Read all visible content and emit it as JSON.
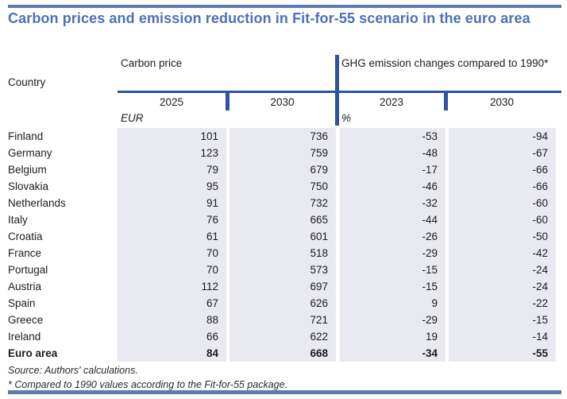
{
  "title": "Carbon prices and emission reduction in Fit-for-55 scenario in the euro area",
  "colors": {
    "title_blue": "#4a72b8",
    "rule_soft_blue": "#5d7bae",
    "rule_strong_blue": "#2f549e",
    "cell_background": "#e9e9f1",
    "text": "#1c1c1c"
  },
  "table": {
    "country_header": "Country",
    "groups": [
      {
        "label": "Carbon price",
        "unit": "EUR",
        "years": [
          "2025",
          "2030"
        ]
      },
      {
        "label": "GHG emission changes compared to 1990*",
        "unit": "%",
        "years": [
          "2023",
          "2030"
        ]
      }
    ],
    "rows": [
      {
        "country": "Finland",
        "values": [
          101,
          736,
          -53,
          -94
        ],
        "bold": false
      },
      {
        "country": "Germany",
        "values": [
          123,
          759,
          -48,
          -67
        ],
        "bold": false
      },
      {
        "country": "Belgium",
        "values": [
          79,
          679,
          -17,
          -66
        ],
        "bold": false
      },
      {
        "country": "Slovakia",
        "values": [
          95,
          750,
          -46,
          -66
        ],
        "bold": false
      },
      {
        "country": "Netherlands",
        "values": [
          91,
          732,
          -32,
          -60
        ],
        "bold": false
      },
      {
        "country": "Italy",
        "values": [
          76,
          665,
          -44,
          -60
        ],
        "bold": false
      },
      {
        "country": "Croatia",
        "values": [
          61,
          601,
          -26,
          -50
        ],
        "bold": false
      },
      {
        "country": "France",
        "values": [
          70,
          518,
          -29,
          -42
        ],
        "bold": false
      },
      {
        "country": "Portugal",
        "values": [
          70,
          573,
          -15,
          -24
        ],
        "bold": false
      },
      {
        "country": "Austria",
        "values": [
          112,
          697,
          -15,
          -24
        ],
        "bold": false
      },
      {
        "country": "Spain",
        "values": [
          67,
          626,
          9,
          -22
        ],
        "bold": false
      },
      {
        "country": "Greece",
        "values": [
          88,
          721,
          -29,
          -15
        ],
        "bold": false
      },
      {
        "country": "Ireland",
        "values": [
          66,
          622,
          19,
          -14
        ],
        "bold": false
      },
      {
        "country": "Euro area",
        "values": [
          84,
          668,
          -34,
          -55
        ],
        "bold": true
      }
    ]
  },
  "footer": {
    "source": "Source: Authors' calculations.",
    "footnote": "* Compared to 1990 values according to the Fit-for-55 package."
  }
}
